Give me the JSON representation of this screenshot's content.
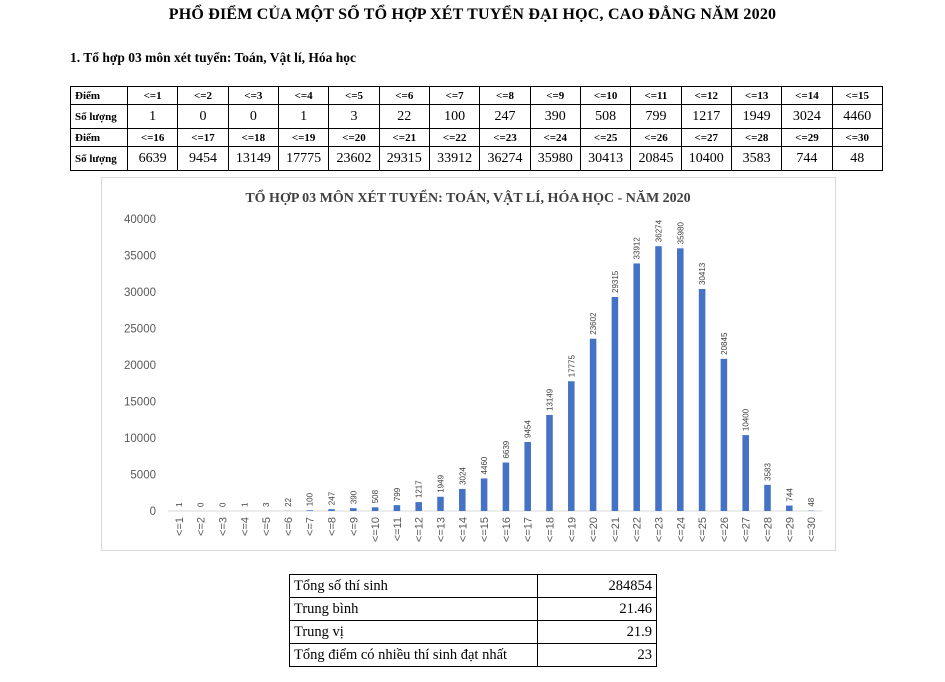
{
  "document": {
    "title": "PHỔ ĐIỂM CỦA MỘT SỐ TỔ HỢP XÉT TUYỂN ĐẠI HỌC, CAO ĐẲNG NĂM 2020",
    "section_heading": "1. Tổ hợp 03 môn xét tuyển: Toán, Vật lí, Hóa học"
  },
  "score_table": {
    "header_label": "Điểm",
    "count_label": "Số lượng",
    "rows": [
      {
        "scores": [
          "<=1",
          "<=2",
          "<=3",
          "<=4",
          "<=5",
          "<=6",
          "<=7",
          "<=8",
          "<=9",
          "<=10",
          "<=11",
          "<=12",
          "<=13",
          "<=14",
          "<=15"
        ],
        "counts": [
          "1",
          "0",
          "0",
          "1",
          "3",
          "22",
          "100",
          "247",
          "390",
          "508",
          "799",
          "1217",
          "1949",
          "3024",
          "4460"
        ]
      },
      {
        "scores": [
          "<=16",
          "<=17",
          "<=18",
          "<=19",
          "<=20",
          "<=21",
          "<=22",
          "<=23",
          "<=24",
          "<=25",
          "<=26",
          "<=27",
          "<=28",
          "<=29",
          "<=30"
        ],
        "counts": [
          "6639",
          "9454",
          "13149",
          "17775",
          "23602",
          "29315",
          "33912",
          "36274",
          "35980",
          "30413",
          "20845",
          "10400",
          "3583",
          "744",
          "48"
        ]
      }
    ]
  },
  "chart_data": {
    "type": "bar",
    "title": "TỔ HỢP 03 MÔN XÉT TUYỂN: TOÁN, VẬT LÍ, HÓA HỌC - NĂM 2020",
    "xlabel": "",
    "ylabel": "",
    "categories": [
      "<=1",
      "<=2",
      "<=3",
      "<=4",
      "<=5",
      "<=6",
      "<=7",
      "<=8",
      "<=9",
      "<=10",
      "<=11",
      "<=12",
      "<=13",
      "<=14",
      "<=15",
      "<=16",
      "<=17",
      "<=18",
      "<=19",
      "<=20",
      "<=21",
      "<=22",
      "<=23",
      "<=24",
      "<=25",
      "<=26",
      "<=27",
      "<=28",
      "<=29",
      "<=30"
    ],
    "values": [
      1,
      0,
      0,
      1,
      3,
      22,
      100,
      247,
      390,
      508,
      799,
      1217,
      1949,
      3024,
      4460,
      6639,
      9454,
      13149,
      17775,
      23602,
      29315,
      33912,
      36274,
      35980,
      30413,
      20845,
      10400,
      3583,
      744,
      48
    ],
    "ylim": [
      0,
      40000
    ],
    "yticks": [
      0,
      5000,
      10000,
      15000,
      20000,
      25000,
      30000,
      35000,
      40000
    ],
    "grid": false,
    "legend": "none",
    "bar_color": "#4472c4",
    "data_labels": true
  },
  "stats_table": {
    "rows": [
      {
        "label": "Tổng số thí sinh",
        "value": "284854"
      },
      {
        "label": "Trung bình",
        "value": "21.46"
      },
      {
        "label": "Trung vị",
        "value": "21.9"
      },
      {
        "label": "Tổng điểm có nhiều thí sinh đạt nhất",
        "value": "23"
      }
    ]
  }
}
